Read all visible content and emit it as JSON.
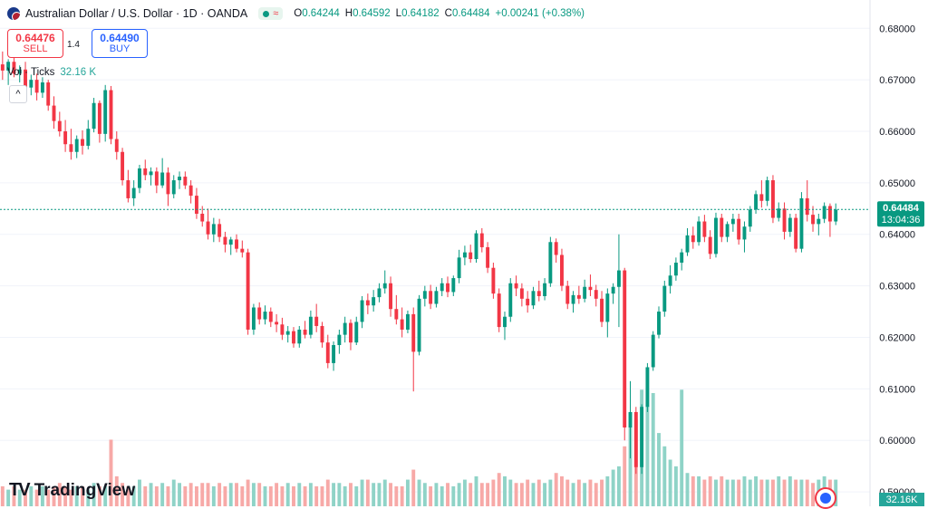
{
  "header": {
    "symbol": "Australian Dollar / U.S. Dollar · 1D · OANDA",
    "badge_icon": "market-status-dot",
    "ohlc": {
      "o_label": "O",
      "o": "0.64244",
      "h_label": "H",
      "h": "0.64592",
      "l_label": "L",
      "l": "0.64182",
      "c_label": "C",
      "c": "0.64484",
      "change": "+0.00241 (+0.38%)"
    }
  },
  "trade": {
    "sell_price": "0.64476",
    "sell_label": "SELL",
    "spread": "1.4",
    "buy_price": "0.64490",
    "buy_label": "BUY"
  },
  "volume_legend": {
    "label": "Vol · Ticks",
    "value": "32.16 K"
  },
  "brand": {
    "name": "TradingView"
  },
  "price_axis": {
    "ticks": [
      "0.68000",
      "0.67000",
      "0.66000",
      "0.65000",
      "0.64000",
      "0.63000",
      "0.62000",
      "0.61000",
      "0.60000",
      "0.59000"
    ],
    "last_price": "0.64484",
    "countdown": "13:04:36",
    "volume_label": "32.16K"
  },
  "colors": {
    "up": "#089981",
    "down": "#f23645",
    "vol_up": "#8fd3c7",
    "vol_down": "#f7a9a7",
    "last_line": "#089981"
  },
  "chart_data": {
    "type": "candlestick",
    "ylim": [
      0.5872,
      0.6855
    ],
    "ohlc": [
      [
        0.673,
        0.6755,
        0.67,
        0.6718
      ],
      [
        0.6718,
        0.674,
        0.669,
        0.6735
      ],
      [
        0.6735,
        0.6745,
        0.6705,
        0.6712
      ],
      [
        0.6712,
        0.6728,
        0.6695,
        0.672
      ],
      [
        0.672,
        0.6735,
        0.667,
        0.6685
      ],
      [
        0.6685,
        0.671,
        0.667,
        0.67
      ],
      [
        0.67,
        0.6712,
        0.666,
        0.6675
      ],
      [
        0.6675,
        0.6705,
        0.6665,
        0.6695
      ],
      [
        0.6695,
        0.67,
        0.664,
        0.665
      ],
      [
        0.665,
        0.6668,
        0.6605,
        0.662
      ],
      [
        0.662,
        0.6638,
        0.659,
        0.66
      ],
      [
        0.66,
        0.6622,
        0.656,
        0.6575
      ],
      [
        0.6575,
        0.6605,
        0.6545,
        0.656
      ],
      [
        0.656,
        0.6592,
        0.6548,
        0.6585
      ],
      [
        0.6585,
        0.6602,
        0.6555,
        0.6572
      ],
      [
        0.6572,
        0.6622,
        0.6565,
        0.6605
      ],
      [
        0.6605,
        0.6665,
        0.6598,
        0.6655
      ],
      [
        0.6655,
        0.666,
        0.6578,
        0.6595
      ],
      [
        0.6595,
        0.669,
        0.658,
        0.668
      ],
      [
        0.668,
        0.6688,
        0.6575,
        0.6585
      ],
      [
        0.6585,
        0.66,
        0.6545,
        0.656
      ],
      [
        0.656,
        0.6568,
        0.6495,
        0.6505
      ],
      [
        0.6505,
        0.6525,
        0.6462,
        0.647
      ],
      [
        0.647,
        0.6505,
        0.6455,
        0.649
      ],
      [
        0.649,
        0.6535,
        0.648,
        0.6528
      ],
      [
        0.6528,
        0.6545,
        0.6505,
        0.6515
      ],
      [
        0.6515,
        0.653,
        0.6495,
        0.6522
      ],
      [
        0.6522,
        0.653,
        0.648,
        0.6495
      ],
      [
        0.6495,
        0.6548,
        0.649,
        0.652
      ],
      [
        0.652,
        0.653,
        0.6455,
        0.6478
      ],
      [
        0.6478,
        0.6515,
        0.647,
        0.6505
      ],
      [
        0.6505,
        0.6522,
        0.6488,
        0.6512
      ],
      [
        0.6512,
        0.6522,
        0.6488,
        0.6495
      ],
      [
        0.6495,
        0.6505,
        0.646,
        0.6475
      ],
      [
        0.6475,
        0.649,
        0.643,
        0.644
      ],
      [
        0.644,
        0.6455,
        0.6415,
        0.6425
      ],
      [
        0.6425,
        0.645,
        0.639,
        0.64
      ],
      [
        0.64,
        0.6432,
        0.6385,
        0.642
      ],
      [
        0.642,
        0.643,
        0.6385,
        0.6395
      ],
      [
        0.6395,
        0.6405,
        0.6365,
        0.638
      ],
      [
        0.638,
        0.6395,
        0.636,
        0.639
      ],
      [
        0.639,
        0.64,
        0.6365,
        0.6372
      ],
      [
        0.6372,
        0.6388,
        0.6355,
        0.6365
      ],
      [
        0.6365,
        0.6372,
        0.6205,
        0.6215
      ],
      [
        0.6215,
        0.6265,
        0.6205,
        0.6258
      ],
      [
        0.6258,
        0.6268,
        0.6225,
        0.6235
      ],
      [
        0.6235,
        0.6262,
        0.6225,
        0.625
      ],
      [
        0.625,
        0.6258,
        0.622,
        0.623
      ],
      [
        0.623,
        0.6245,
        0.621,
        0.6225
      ],
      [
        0.6225,
        0.6238,
        0.6195,
        0.6205
      ],
      [
        0.6205,
        0.6222,
        0.619,
        0.6212
      ],
      [
        0.6212,
        0.622,
        0.618,
        0.6188
      ],
      [
        0.6188,
        0.6222,
        0.618,
        0.6215
      ],
      [
        0.6215,
        0.6232,
        0.6198,
        0.6205
      ],
      [
        0.6205,
        0.6252,
        0.6198,
        0.624
      ],
      [
        0.624,
        0.6265,
        0.621,
        0.6222
      ],
      [
        0.6222,
        0.623,
        0.618,
        0.619
      ],
      [
        0.619,
        0.6205,
        0.614,
        0.615
      ],
      [
        0.615,
        0.6192,
        0.6135,
        0.6185
      ],
      [
        0.6185,
        0.6215,
        0.6168,
        0.6205
      ],
      [
        0.6205,
        0.624,
        0.619,
        0.6228
      ],
      [
        0.6228,
        0.6235,
        0.6175,
        0.619
      ],
      [
        0.619,
        0.624,
        0.6185,
        0.623
      ],
      [
        0.623,
        0.628,
        0.6218,
        0.6272
      ],
      [
        0.6272,
        0.6285,
        0.6245,
        0.6262
      ],
      [
        0.6262,
        0.6292,
        0.625,
        0.6278
      ],
      [
        0.6278,
        0.6305,
        0.6268,
        0.6295
      ],
      [
        0.6295,
        0.633,
        0.6285,
        0.6305
      ],
      [
        0.6305,
        0.6318,
        0.624,
        0.6255
      ],
      [
        0.6255,
        0.6282,
        0.6225,
        0.6235
      ],
      [
        0.6235,
        0.6258,
        0.62,
        0.6215
      ],
      [
        0.6215,
        0.6252,
        0.6208,
        0.6245
      ],
      [
        0.6245,
        0.6258,
        0.6095,
        0.6172
      ],
      [
        0.6172,
        0.6282,
        0.6165,
        0.6275
      ],
      [
        0.6275,
        0.63,
        0.626,
        0.629
      ],
      [
        0.629,
        0.6302,
        0.6255,
        0.6265
      ],
      [
        0.6265,
        0.6298,
        0.6258,
        0.629
      ],
      [
        0.629,
        0.6315,
        0.628,
        0.6305
      ],
      [
        0.6305,
        0.6318,
        0.6278,
        0.6288
      ],
      [
        0.6288,
        0.632,
        0.628,
        0.6315
      ],
      [
        0.6315,
        0.637,
        0.6305,
        0.6355
      ],
      [
        0.6355,
        0.6378,
        0.634,
        0.6365
      ],
      [
        0.6365,
        0.638,
        0.6345,
        0.6352
      ],
      [
        0.6352,
        0.6408,
        0.6345,
        0.6402
      ],
      [
        0.6402,
        0.6412,
        0.6365,
        0.6375
      ],
      [
        0.6375,
        0.6385,
        0.6325,
        0.6335
      ],
      [
        0.6335,
        0.6345,
        0.6275,
        0.6285
      ],
      [
        0.6285,
        0.6295,
        0.621,
        0.622
      ],
      [
        0.622,
        0.625,
        0.6195,
        0.624
      ],
      [
        0.624,
        0.6315,
        0.623,
        0.6305
      ],
      [
        0.6305,
        0.632,
        0.628,
        0.6295
      ],
      [
        0.6295,
        0.6305,
        0.626,
        0.6275
      ],
      [
        0.6275,
        0.629,
        0.6248,
        0.6262
      ],
      [
        0.6262,
        0.6298,
        0.6255,
        0.629
      ],
      [
        0.629,
        0.631,
        0.627,
        0.628
      ],
      [
        0.628,
        0.6315,
        0.6272,
        0.6305
      ],
      [
        0.6305,
        0.6395,
        0.6298,
        0.6385
      ],
      [
        0.6385,
        0.6392,
        0.6345,
        0.636
      ],
      [
        0.636,
        0.6372,
        0.629,
        0.63
      ],
      [
        0.63,
        0.631,
        0.6255,
        0.6265
      ],
      [
        0.6265,
        0.629,
        0.6248,
        0.6282
      ],
      [
        0.6282,
        0.63,
        0.6265,
        0.6275
      ],
      [
        0.6275,
        0.6312,
        0.6268,
        0.6298
      ],
      [
        0.6298,
        0.6322,
        0.628,
        0.6292
      ],
      [
        0.6292,
        0.6302,
        0.626,
        0.6275
      ],
      [
        0.6275,
        0.629,
        0.622,
        0.623
      ],
      [
        0.623,
        0.6295,
        0.62,
        0.6285
      ],
      [
        0.6285,
        0.6305,
        0.6265,
        0.6298
      ],
      [
        0.6298,
        0.64,
        0.622,
        0.633
      ],
      [
        0.633,
        0.6335,
        0.6,
        0.6025
      ],
      [
        0.6025,
        0.6115,
        0.5965,
        0.6055
      ],
      [
        0.6055,
        0.6065,
        0.5935,
        0.5948
      ],
      [
        0.5948,
        0.607,
        0.5935,
        0.6065
      ],
      [
        0.6065,
        0.615,
        0.6055,
        0.6142
      ],
      [
        0.6142,
        0.6212,
        0.6135,
        0.6205
      ],
      [
        0.6205,
        0.626,
        0.6198,
        0.625
      ],
      [
        0.625,
        0.631,
        0.624,
        0.63
      ],
      [
        0.63,
        0.634,
        0.6285,
        0.632
      ],
      [
        0.632,
        0.6355,
        0.631,
        0.6345
      ],
      [
        0.6345,
        0.6372,
        0.633,
        0.6365
      ],
      [
        0.6365,
        0.6412,
        0.6358,
        0.6398
      ],
      [
        0.6398,
        0.6415,
        0.6372,
        0.6385
      ],
      [
        0.6385,
        0.6435,
        0.6378,
        0.6425
      ],
      [
        0.6425,
        0.6438,
        0.6385,
        0.6395
      ],
      [
        0.6395,
        0.6408,
        0.6352,
        0.6362
      ],
      [
        0.6362,
        0.6442,
        0.6355,
        0.6432
      ],
      [
        0.6432,
        0.644,
        0.6385,
        0.6395
      ],
      [
        0.6395,
        0.6425,
        0.6385,
        0.642
      ],
      [
        0.642,
        0.644,
        0.6405,
        0.643
      ],
      [
        0.643,
        0.644,
        0.638,
        0.639
      ],
      [
        0.639,
        0.6425,
        0.6365,
        0.6415
      ],
      [
        0.6415,
        0.6455,
        0.6405,
        0.6448
      ],
      [
        0.6448,
        0.6485,
        0.644,
        0.6478
      ],
      [
        0.6478,
        0.6505,
        0.6452,
        0.6465
      ],
      [
        0.6465,
        0.6512,
        0.6455,
        0.6505
      ],
      [
        0.6505,
        0.6515,
        0.6422,
        0.6432
      ],
      [
        0.6432,
        0.6462,
        0.6425,
        0.645
      ],
      [
        0.645,
        0.6462,
        0.639,
        0.6405
      ],
      [
        0.6405,
        0.644,
        0.6395,
        0.6432
      ],
      [
        0.6432,
        0.644,
        0.6365,
        0.6372
      ],
      [
        0.6372,
        0.6482,
        0.6365,
        0.647
      ],
      [
        0.647,
        0.6505,
        0.6425,
        0.6438
      ],
      [
        0.6438,
        0.6455,
        0.6405,
        0.642
      ],
      [
        0.642,
        0.644,
        0.6398,
        0.643
      ],
      [
        0.643,
        0.6462,
        0.6422,
        0.6455
      ],
      [
        0.6455,
        0.646,
        0.6395,
        0.6425
      ],
      [
        0.6425,
        0.646,
        0.6418,
        0.6448
      ]
    ],
    "volume": [
      6,
      5,
      6,
      5,
      5,
      6,
      5,
      6,
      5,
      6,
      7,
      6,
      5,
      6,
      6,
      5,
      7,
      6,
      6,
      20,
      9,
      7,
      6,
      6,
      8,
      6,
      7,
      6,
      7,
      6,
      8,
      7,
      6,
      7,
      6,
      7,
      7,
      6,
      7,
      6,
      7,
      7,
      6,
      8,
      7,
      7,
      6,
      6,
      7,
      6,
      7,
      6,
      7,
      6,
      7,
      6,
      6,
      8,
      7,
      7,
      6,
      7,
      6,
      8,
      8,
      7,
      7,
      8,
      7,
      6,
      6,
      8,
      11,
      8,
      7,
      6,
      7,
      6,
      7,
      6,
      7,
      8,
      7,
      9,
      7,
      7,
      8,
      10,
      9,
      8,
      7,
      7,
      8,
      7,
      8,
      7,
      8,
      10,
      9,
      8,
      7,
      8,
      7,
      8,
      7,
      8,
      9,
      11,
      12,
      18,
      28,
      26,
      35,
      30,
      34,
      22,
      18,
      14,
      12,
      35,
      10,
      9,
      9,
      8,
      9,
      8,
      9,
      8,
      8,
      8,
      9,
      8,
      9,
      8,
      8,
      8,
      9,
      8,
      9,
      8,
      8,
      8,
      7,
      8,
      9,
      8,
      8
    ],
    "volume_max": 62,
    "x_domain": [
      -0.45,
      152.0
    ]
  }
}
